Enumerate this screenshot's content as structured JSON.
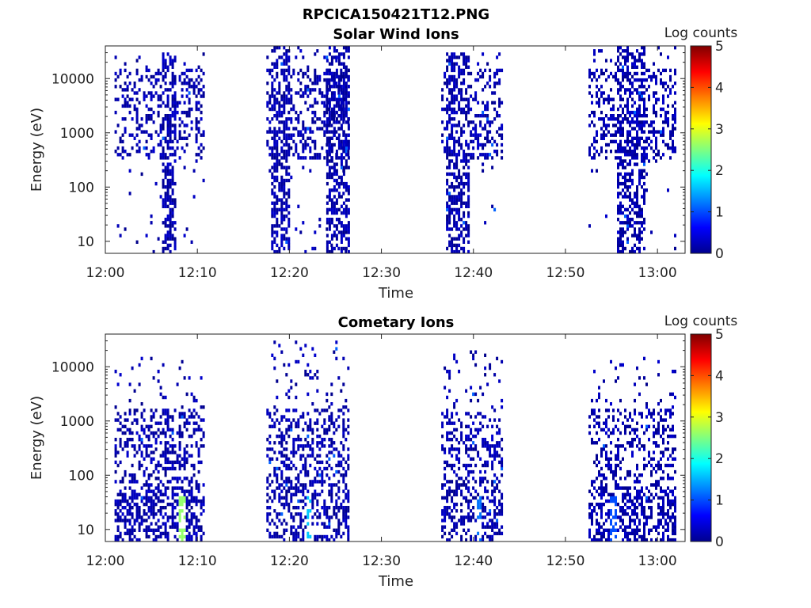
{
  "figure": {
    "title": "RPCICA150421T12.PNG"
  },
  "chart_data": [
    {
      "type": "heatmap",
      "title": "Solar Wind Ions",
      "xlabel": "Time",
      "ylabel": "Energy (eV)",
      "x_range": [
        "12:00",
        "13:03"
      ],
      "x_ticks": [
        "12:00",
        "12:10",
        "12:20",
        "12:30",
        "12:40",
        "12:50",
        "13:00"
      ],
      "y_scale": "log",
      "y_range": [
        6,
        40000
      ],
      "y_ticks": [
        "10",
        "100",
        "1000",
        "10000"
      ],
      "colorbar": {
        "label": "Log counts",
        "range": [
          0,
          5
        ],
        "ticks": [
          "0",
          "1",
          "2",
          "3",
          "4",
          "5"
        ],
        "colormap": "jet"
      },
      "bursts": [
        {
          "start": "12:01",
          "end": "12:10.6",
          "core_start": "12:06",
          "core_end": "12:07.5",
          "core_min_ev": 6,
          "max_ev": 30000,
          "level": 0.3
        },
        {
          "start": "12:17.5",
          "end": "12:26.5",
          "core_start": "12:18",
          "core_end": "12:20",
          "core_min_ev": 6,
          "max_ev": 35000,
          "level": 0.35
        },
        {
          "start": "12:24",
          "end": "12:26.5",
          "core_start": "12:24",
          "core_end": "12:26.5",
          "core_min_ev": 6,
          "max_ev": 35000,
          "level": 0.3
        },
        {
          "start": "12:36.5",
          "end": "12:43",
          "core_start": "12:37",
          "core_end": "12:39.5",
          "core_min_ev": 6,
          "max_ev": 30000,
          "level": 0.35
        },
        {
          "start": "12:52.5",
          "end": "13:02",
          "core_start": "12:55.5",
          "core_end": "12:58.5",
          "core_min_ev": 6,
          "max_ev": 35000,
          "level": 0.3
        }
      ]
    },
    {
      "type": "heatmap",
      "title": "Cometary Ions",
      "xlabel": "Time",
      "ylabel": "Energy (eV)",
      "x_range": [
        "12:00",
        "13:03"
      ],
      "x_ticks": [
        "12:00",
        "12:10",
        "12:20",
        "12:30",
        "12:40",
        "12:50",
        "13:00"
      ],
      "y_scale": "log",
      "y_range": [
        6,
        40000
      ],
      "y_ticks": [
        "10",
        "100",
        "1000",
        "10000"
      ],
      "colorbar": {
        "label": "Log counts",
        "range": [
          0,
          5
        ],
        "ticks": [
          "0",
          "1",
          "2",
          "3",
          "4",
          "5"
        ],
        "colormap": "jet"
      },
      "bursts": [
        {
          "start": "12:01",
          "end": "12:10.6",
          "peak_time": "12:08.3",
          "peak_level": 2.6,
          "max_ev": 15000,
          "level": 0.35
        },
        {
          "start": "12:17.5",
          "end": "12:26.5",
          "peak_time": "12:22",
          "peak_level": 1.6,
          "max_ev": 30000,
          "level": 0.35
        },
        {
          "start": "12:36.5",
          "end": "12:43",
          "peak_time": "12:40.5",
          "peak_level": 1.2,
          "max_ev": 20000,
          "level": 0.3
        },
        {
          "start": "12:52.5",
          "end": "13:02",
          "peak_time": "12:55",
          "peak_level": 1.0,
          "max_ev": 15000,
          "level": 0.3
        }
      ]
    }
  ]
}
